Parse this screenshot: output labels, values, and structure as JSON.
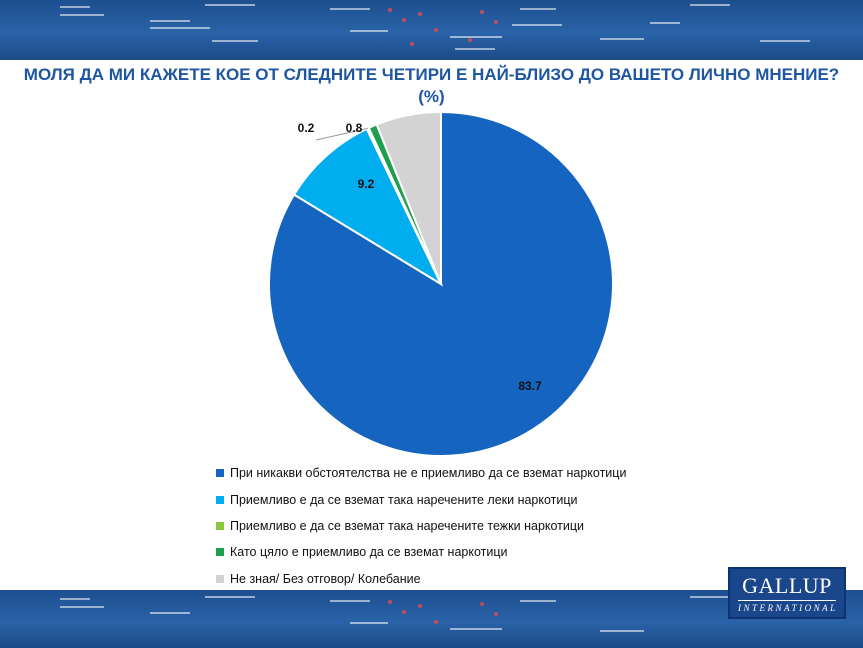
{
  "title": "МОЛЯ ДА МИ КАЖЕТЕ КОЕ ОТ СЛЕДНИТЕ ЧЕТИРИ Е НАЙ-БЛИЗО ДО ВАШЕТО ЛИЧНО МНЕНИЕ? (%)",
  "chart_data": {
    "type": "pie",
    "title": "МОЛЯ ДА МИ КАЖЕТЕ КОЕ ОТ СЛЕДНИТЕ ЧЕТИРИ Е НАЙ-БЛИЗО ДО ВАШЕТО ЛИЧНО МНЕНИЕ? (%)",
    "categories": [
      "При никакви обстоятелства не е приемливо да се вземат наркотици",
      "Приемливо е да се вземат така наречените леки наркотици",
      "Приемливо е да се вземат така наречените тежки наркотици",
      "Като цяло е приемливо да се вземат наркотици",
      "Не зная/ Без отговор/ Колебание"
    ],
    "values": [
      83.7,
      9.2,
      0.2,
      0.8,
      6.1
    ],
    "labels": [
      "83.7",
      "9.2",
      "0.2",
      "0.8",
      ""
    ],
    "colors": [
      "#1565c0",
      "#00adef",
      "#8cc63f",
      "#1f9e4f",
      "#d3d3d3"
    ],
    "legend_position": "bottom"
  },
  "logo": {
    "main": "GALLUP",
    "sub": "INTERNATIONAL"
  }
}
